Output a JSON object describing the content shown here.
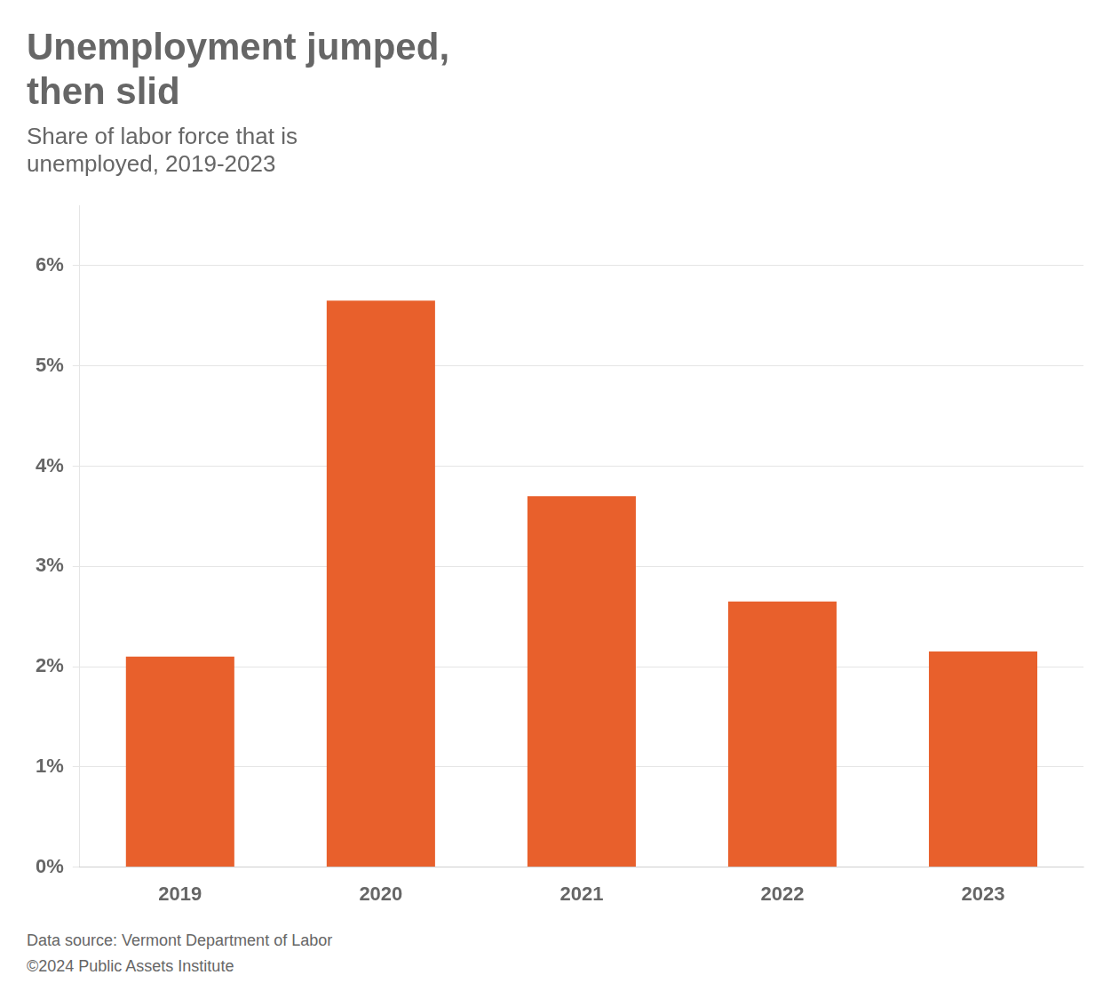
{
  "chart_data": {
    "type": "bar",
    "title": [
      "Unemployment jumped,",
      "then slid"
    ],
    "subtitle": [
      "Share of labor force that is",
      "unemployed, 2019-2023"
    ],
    "annotations": [
      "Data source: Vermont Department of Labor",
      "©2024 Public Assets Institute"
    ],
    "categories": [
      "2019",
      "2020",
      "2021",
      "2022",
      "2023"
    ],
    "values": [
      2.1,
      5.65,
      3.7,
      2.65,
      2.15
    ],
    "color": "#E8602C",
    "ylim": [
      0,
      6.6
    ],
    "yticks": [
      {
        "value": 0,
        "label": "0%"
      },
      {
        "value": 1,
        "label": "1%"
      },
      {
        "value": 2,
        "label": "2%"
      },
      {
        "value": 3,
        "label": "3%"
      },
      {
        "value": 4,
        "label": "4%"
      },
      {
        "value": 5,
        "label": "5%"
      },
      {
        "value": 6,
        "label": "6%"
      }
    ],
    "grid": true
  }
}
